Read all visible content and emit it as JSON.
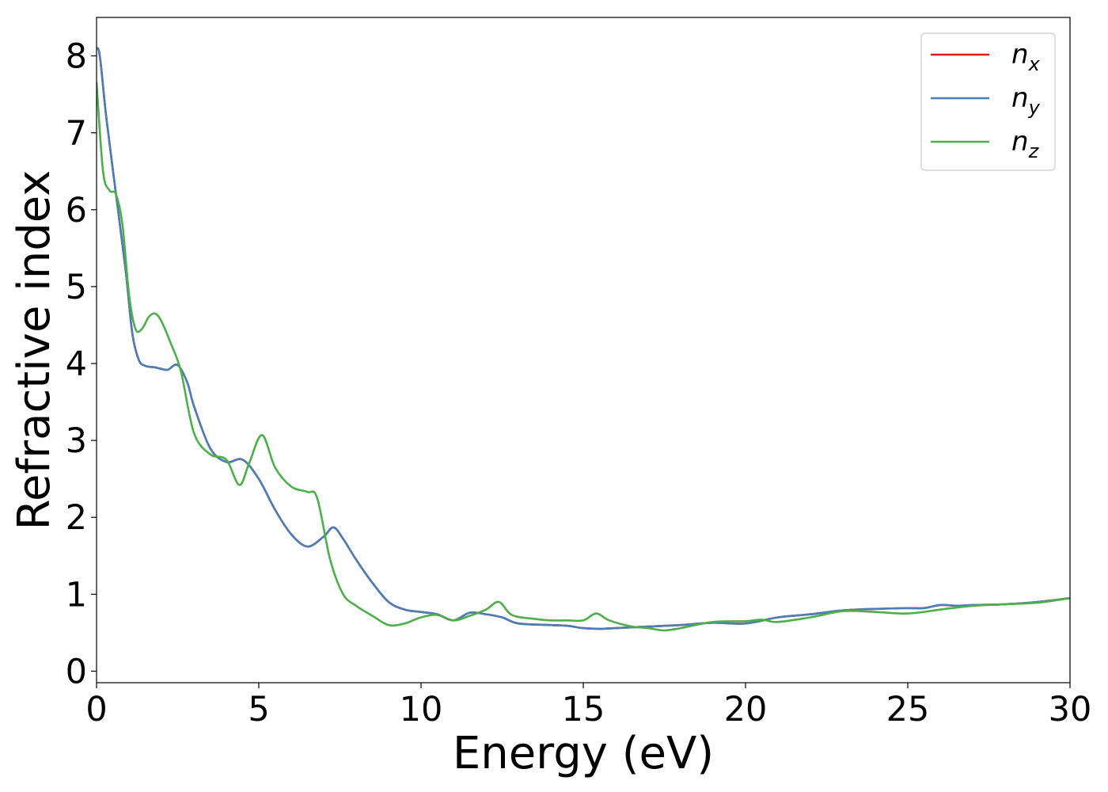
{
  "chart_data": {
    "type": "line",
    "title": "",
    "xlabel": "Energy (eV)",
    "ylabel": "Refractive index",
    "xlim": [
      0,
      30
    ],
    "ylim": [
      -0.15,
      8.5
    ],
    "xticks": [
      0,
      5,
      10,
      15,
      20,
      25,
      30
    ],
    "xtick_labels": [
      "0",
      "5",
      "10",
      "15",
      "20",
      "25",
      "30"
    ],
    "yticks": [
      0,
      1,
      2,
      3,
      4,
      5,
      6,
      7,
      8
    ],
    "ytick_labels": [
      "0",
      "1",
      "2",
      "3",
      "4",
      "5",
      "6",
      "7",
      "8"
    ],
    "grid": false,
    "legend_position": "top-right",
    "series": [
      {
        "name": "n",
        "subscript": "x",
        "color": "#e41a1c",
        "x": [
          0,
          0.1,
          0.3,
          0.6,
          0.9,
          1.1,
          1.3,
          1.5,
          1.8,
          2.0,
          2.2,
          2.5,
          2.8,
          3.0,
          3.5,
          4.0,
          4.5,
          5.0,
          5.5,
          6.0,
          6.5,
          7.0,
          7.3,
          7.6,
          8.0,
          8.5,
          9.0,
          9.5,
          10.0,
          10.5,
          11.0,
          11.5,
          12.0,
          12.5,
          13.0,
          14.0,
          14.5,
          15.0,
          15.5,
          16.0,
          17.0,
          18.0,
          19.0,
          20.0,
          21.0,
          22.0,
          23.0,
          24.0,
          25.0,
          25.5,
          26.0,
          26.5,
          27.0,
          28.0,
          29.0,
          30.0
        ],
        "values": [
          8.1,
          8.0,
          7.2,
          6.2,
          5.2,
          4.4,
          4.05,
          3.97,
          3.95,
          3.93,
          3.92,
          3.98,
          3.75,
          3.45,
          2.9,
          2.72,
          2.75,
          2.5,
          2.1,
          1.78,
          1.62,
          1.75,
          1.87,
          1.72,
          1.45,
          1.15,
          0.9,
          0.8,
          0.77,
          0.74,
          0.66,
          0.76,
          0.74,
          0.7,
          0.62,
          0.6,
          0.59,
          0.56,
          0.55,
          0.56,
          0.58,
          0.6,
          0.63,
          0.62,
          0.7,
          0.74,
          0.79,
          0.81,
          0.82,
          0.82,
          0.86,
          0.85,
          0.86,
          0.87,
          0.9,
          0.95
        ]
      },
      {
        "name": "n",
        "subscript": "y",
        "color": "#4a7fb5",
        "x": [
          0,
          0.1,
          0.3,
          0.6,
          0.9,
          1.1,
          1.3,
          1.5,
          1.8,
          2.0,
          2.2,
          2.5,
          2.8,
          3.0,
          3.5,
          4.0,
          4.5,
          5.0,
          5.5,
          6.0,
          6.5,
          7.0,
          7.3,
          7.6,
          8.0,
          8.5,
          9.0,
          9.5,
          10.0,
          10.5,
          11.0,
          11.5,
          12.0,
          12.5,
          13.0,
          14.0,
          14.5,
          15.0,
          15.5,
          16.0,
          17.0,
          18.0,
          19.0,
          20.0,
          21.0,
          22.0,
          23.0,
          24.0,
          25.0,
          25.5,
          26.0,
          26.5,
          27.0,
          28.0,
          29.0,
          30.0
        ],
        "values": [
          8.1,
          8.0,
          7.2,
          6.2,
          5.2,
          4.4,
          4.05,
          3.97,
          3.95,
          3.93,
          3.92,
          3.98,
          3.75,
          3.45,
          2.9,
          2.72,
          2.75,
          2.5,
          2.1,
          1.78,
          1.62,
          1.75,
          1.87,
          1.72,
          1.45,
          1.15,
          0.9,
          0.8,
          0.77,
          0.74,
          0.66,
          0.76,
          0.74,
          0.7,
          0.62,
          0.6,
          0.59,
          0.56,
          0.55,
          0.56,
          0.58,
          0.6,
          0.63,
          0.62,
          0.7,
          0.74,
          0.79,
          0.81,
          0.82,
          0.82,
          0.86,
          0.85,
          0.86,
          0.87,
          0.9,
          0.95
        ]
      },
      {
        "name": "n",
        "subscript": "z",
        "color": "#4daf4a",
        "x": [
          0,
          0.2,
          0.4,
          0.6,
          0.8,
          1.0,
          1.2,
          1.4,
          1.6,
          1.8,
          2.0,
          2.3,
          2.6,
          3.0,
          3.5,
          4.0,
          4.4,
          4.7,
          5.1,
          5.5,
          6.0,
          6.5,
          6.8,
          7.2,
          7.6,
          8.0,
          8.5,
          9.0,
          9.5,
          10.0,
          10.5,
          11.0,
          11.5,
          12.0,
          12.4,
          12.8,
          13.5,
          14.0,
          14.5,
          15.0,
          15.4,
          15.8,
          16.5,
          17.0,
          17.5,
          18.0,
          19.0,
          20.0,
          20.5,
          21.0,
          22.0,
          23.0,
          24.0,
          25.0,
          26.0,
          27.0,
          28.0,
          29.0,
          30.0
        ],
        "values": [
          7.65,
          6.5,
          6.25,
          6.2,
          5.8,
          4.9,
          4.45,
          4.45,
          4.6,
          4.65,
          4.55,
          4.25,
          3.9,
          3.1,
          2.82,
          2.75,
          2.42,
          2.7,
          3.07,
          2.65,
          2.4,
          2.33,
          2.25,
          1.45,
          1.0,
          0.85,
          0.72,
          0.6,
          0.62,
          0.7,
          0.73,
          0.66,
          0.72,
          0.8,
          0.9,
          0.73,
          0.68,
          0.66,
          0.66,
          0.66,
          0.75,
          0.66,
          0.58,
          0.56,
          0.53,
          0.56,
          0.64,
          0.65,
          0.67,
          0.64,
          0.7,
          0.78,
          0.77,
          0.75,
          0.8,
          0.85,
          0.87,
          0.89,
          0.95
        ]
      }
    ]
  }
}
